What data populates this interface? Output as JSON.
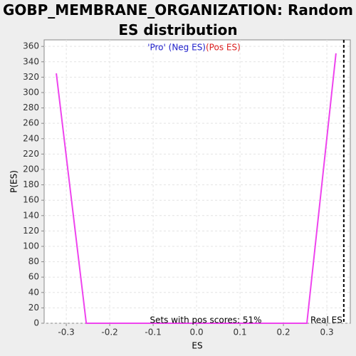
{
  "chart_data": {
    "type": "line",
    "title": "GOBP_MEMBRANE_ORGANIZATION: Random ES distribution",
    "x_label": "ES",
    "y_label": "P(ES)",
    "legend_neg": "'Pro' (Neg ES)",
    "legend_pos": "(Pos ES)",
    "annotation": "Sets with pos scores: 51%",
    "real_es_label": "Real ES",
    "real_es": 0.339,
    "x": [
      -0.323,
      -0.254,
      0.254,
      0.321
    ],
    "series": [
      {
        "color": "#ee44ee",
        "values": [
          325,
          0,
          0,
          351
        ]
      }
    ],
    "xlim": [
      -0.351,
      0.354
    ],
    "ylim": [
      0,
      368.5
    ],
    "xticks": [
      -0.3,
      -0.2,
      -0.1,
      {
        "value": 0,
        "label": "0.0"
      },
      0.1,
      0.2,
      0.3
    ],
    "yticks": [
      0,
      20,
      40,
      60,
      80,
      100,
      120,
      140,
      160,
      180,
      200,
      220,
      240,
      260,
      280,
      300,
      320,
      340,
      360
    ],
    "grid": true
  }
}
